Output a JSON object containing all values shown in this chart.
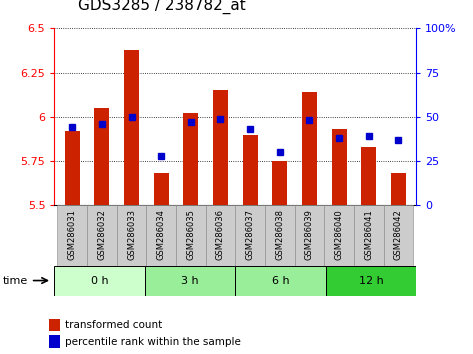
{
  "title": "GDS3285 / 238782_at",
  "samples": [
    "GSM286031",
    "GSM286032",
    "GSM286033",
    "GSM286034",
    "GSM286035",
    "GSM286036",
    "GSM286037",
    "GSM286038",
    "GSM286039",
    "GSM286040",
    "GSM286041",
    "GSM286042"
  ],
  "bar_values": [
    5.92,
    6.05,
    6.38,
    5.68,
    6.02,
    6.15,
    5.9,
    5.75,
    6.14,
    5.93,
    5.83,
    5.68
  ],
  "percentile_values": [
    44,
    46,
    50,
    28,
    47,
    49,
    43,
    30,
    48,
    38,
    39,
    37
  ],
  "ymin": 5.5,
  "ymax": 6.5,
  "yticks": [
    5.5,
    5.75,
    6.0,
    6.25,
    6.5
  ],
  "ytick_labels": [
    "5.5",
    "5.75",
    "6",
    "6.25",
    "6.5"
  ],
  "y2min": 0,
  "y2max": 100,
  "y2ticks": [
    0,
    25,
    50,
    75,
    100
  ],
  "y2tick_labels": [
    "0",
    "25",
    "50",
    "75",
    "100%"
  ],
  "bar_color": "#cc2200",
  "dot_color": "#0000cc",
  "time_groups": [
    {
      "label": "0 h",
      "start": 0,
      "end": 3,
      "color": "#ccffcc"
    },
    {
      "label": "3 h",
      "start": 3,
      "end": 6,
      "color": "#99ee99"
    },
    {
      "label": "6 h",
      "start": 6,
      "end": 9,
      "color": "#99ee99"
    },
    {
      "label": "12 h",
      "start": 9,
      "end": 12,
      "color": "#33cc33"
    }
  ],
  "xlabel_time": "time",
  "legend_bar_label": "transformed count",
  "legend_dot_label": "percentile rank within the sample",
  "grid_color": "black",
  "background_color": "#ffffff",
  "sample_bg_color": "#cccccc",
  "title_fontsize": 11,
  "axis_fontsize": 8,
  "bar_width": 0.5
}
